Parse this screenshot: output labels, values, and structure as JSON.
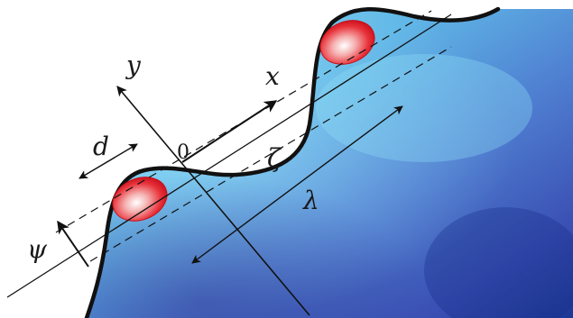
{
  "labels": {
    "y_axis": "y",
    "x_axis": "x",
    "origin": "0",
    "d": "d",
    "zeta": "ζ",
    "lambda": "λ",
    "psi": "ψ"
  },
  "colors": {
    "fluid_light": "#7fd6ee",
    "fluid_mid": "#4f86d0",
    "fluid_dark": "#1f3a9a",
    "cell_red": "#e8202a",
    "cell_center": "#ffffff",
    "ink": "#111111"
  }
}
